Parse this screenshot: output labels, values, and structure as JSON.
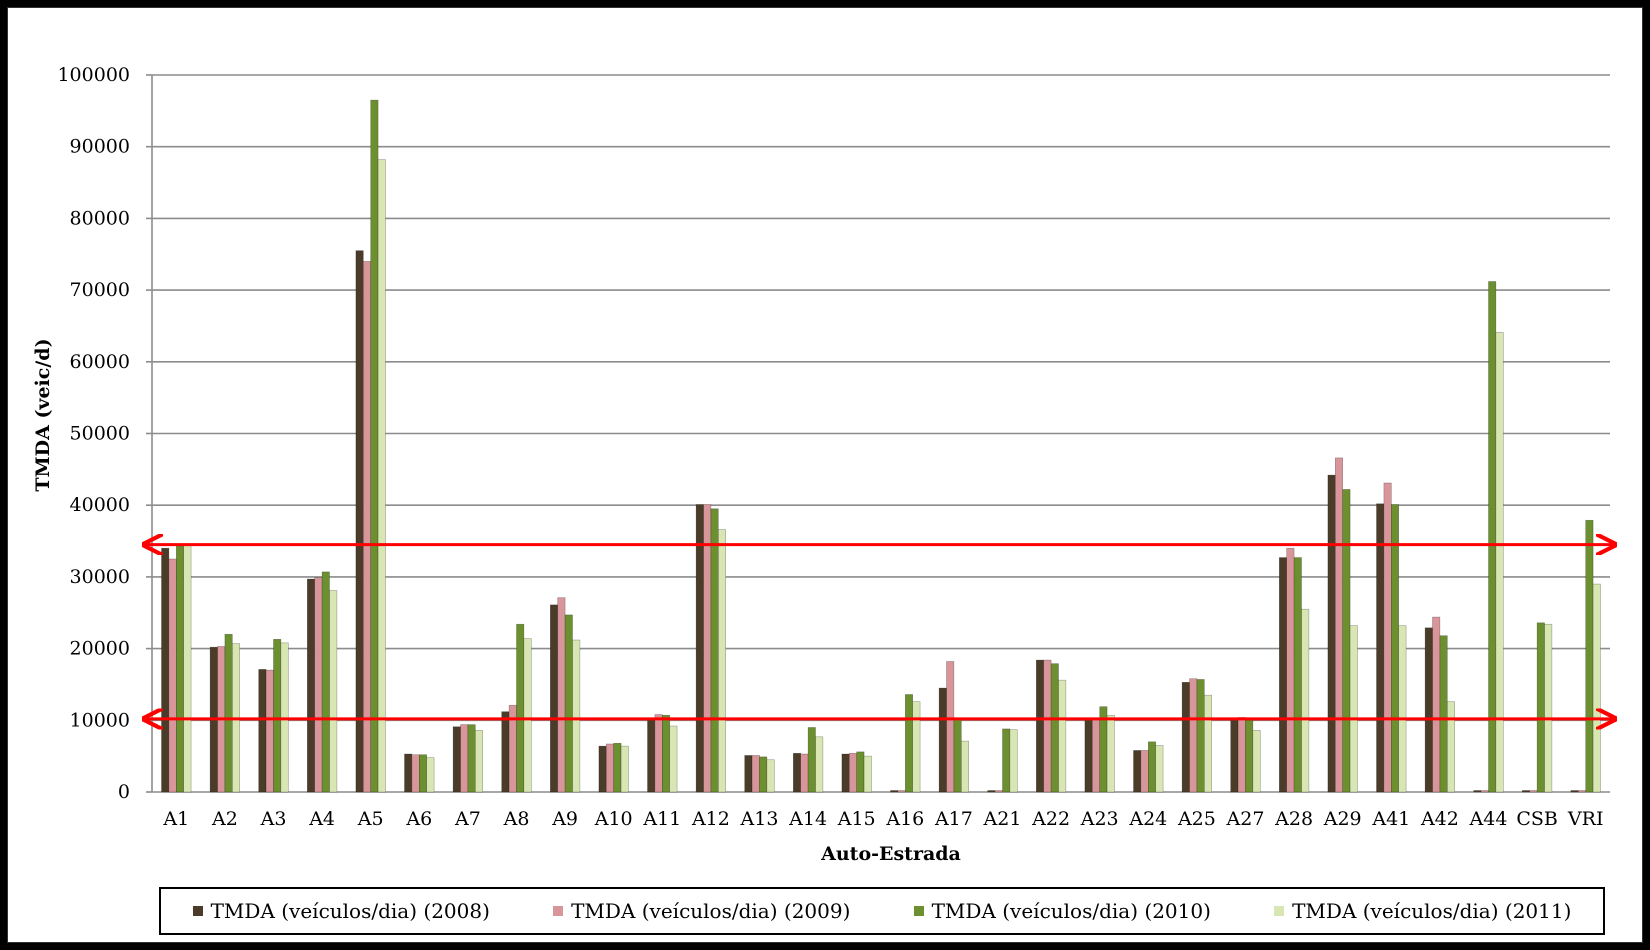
{
  "chart_data": {
    "type": "bar",
    "title": "",
    "xlabel": "Auto-Estrada",
    "ylabel": "TMDA (veic/d)",
    "ylim": [
      0,
      100000
    ],
    "yticks": [
      "0",
      "10000",
      "20000",
      "30000",
      "40000",
      "50000",
      "60000",
      "70000",
      "80000",
      "90000",
      "100000"
    ],
    "grid": true,
    "legend_position": "bottom",
    "categories": [
      "A1",
      "A2",
      "A3",
      "A4",
      "A5",
      "A6",
      "A7",
      "A8",
      "A9",
      "A10",
      "A11",
      "A12",
      "A13",
      "A14",
      "A15",
      "A16",
      "A17",
      "A21",
      "A22",
      "A23",
      "A24",
      "A25",
      "A27",
      "A28",
      "A29",
      "A41",
      "A42",
      "A44",
      "CSB",
      "VRI"
    ],
    "series": [
      {
        "name": "TMDA (veículos/dia) (2008)",
        "color": "#4a3c28",
        "values": [
          34000,
          20200,
          17100,
          29700,
          75500,
          5300,
          9100,
          11200,
          26100,
          6400,
          10300,
          40100,
          5100,
          5400,
          5300,
          0,
          14500,
          0,
          18400,
          10200,
          5800,
          15300,
          10100,
          32700,
          44200,
          40200,
          22900,
          0,
          0,
          0
        ]
      },
      {
        "name": "TMDA (veículos/dia) (2009)",
        "color": "#d9969a",
        "values": [
          32500,
          20300,
          17000,
          29900,
          74000,
          5200,
          9400,
          12100,
          27100,
          6700,
          10800,
          40100,
          5100,
          5300,
          5400,
          0,
          18200,
          0,
          18400,
          10300,
          5800,
          15800,
          10400,
          34000,
          46600,
          43100,
          24400,
          0,
          0,
          0
        ]
      },
      {
        "name": "TMDA (veículos/dia) (2010)",
        "color": "#6c8f2f",
        "values": [
          34500,
          22000,
          21300,
          30700,
          96500,
          5200,
          9400,
          23400,
          24700,
          6800,
          10700,
          39500,
          4900,
          9000,
          5600,
          13600,
          10300,
          8800,
          17900,
          11900,
          7000,
          15700,
          10000,
          32700,
          42200,
          40100,
          21800,
          71200,
          23600,
          37900
        ]
      },
      {
        "name": "TMDA (veículos/dia) (2011)",
        "color": "#d8e6b4",
        "values": [
          34500,
          20700,
          20800,
          28100,
          88200,
          4800,
          8600,
          21400,
          21200,
          6400,
          9200,
          36600,
          4500,
          7700,
          5000,
          12600,
          7100,
          8700,
          15600,
          10700,
          6500,
          13500,
          8600,
          25500,
          23200,
          23200,
          12600,
          64100,
          23400,
          29000
        ]
      }
    ],
    "reference_lines": [
      {
        "y": 34500,
        "color": "#ff0000",
        "arrows": "both"
      },
      {
        "y": 10200,
        "color": "#ff0000",
        "arrows": "both"
      }
    ]
  }
}
